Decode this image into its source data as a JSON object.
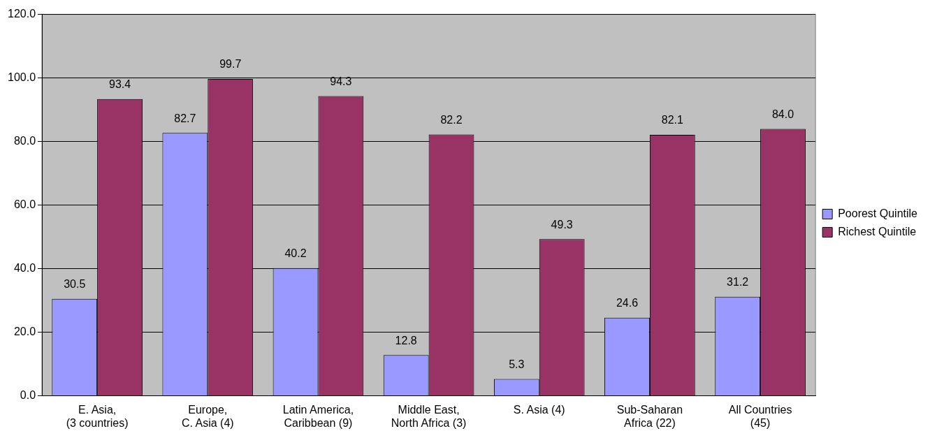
{
  "chart_data": {
    "type": "bar",
    "categories": [
      "E. Asia,\n(3 countries)",
      "Europe,\nC. Asia (4)",
      "Latin America,\nCaribbean (9)",
      "Middle East,\nNorth Africa (3)",
      "S. Asia (4)",
      "Sub-Saharan\nAfrica (22)",
      "All Countries\n(45)"
    ],
    "series": [
      {
        "name": "Poorest Quintile",
        "color": "#9999ff",
        "values": [
          30.5,
          82.7,
          40.2,
          12.8,
          5.3,
          24.6,
          31.2
        ],
        "value_labels": [
          "30.5",
          "82.7",
          "40.2",
          "12.8",
          "5.3",
          "24.6",
          "31.2"
        ]
      },
      {
        "name": "Richest Quintile",
        "color": "#993366",
        "values": [
          93.4,
          99.7,
          94.3,
          82.2,
          49.3,
          82.1,
          84.0
        ],
        "value_labels": [
          "93.4",
          "99.7",
          "94.3",
          "82.2",
          "49.3",
          "82.1",
          "84.0"
        ]
      }
    ],
    "ylim": [
      0,
      120
    ],
    "yticks": [
      {
        "value": 0,
        "label": "0.0"
      },
      {
        "value": 20,
        "label": "20.0"
      },
      {
        "value": 40,
        "label": "40.0"
      },
      {
        "value": 60,
        "label": "60.0"
      },
      {
        "value": 80,
        "label": "80.0"
      },
      {
        "value": 100,
        "label": "100.0"
      },
      {
        "value": 120,
        "label": "120.0"
      }
    ],
    "grid": "y",
    "legend": "right"
  }
}
